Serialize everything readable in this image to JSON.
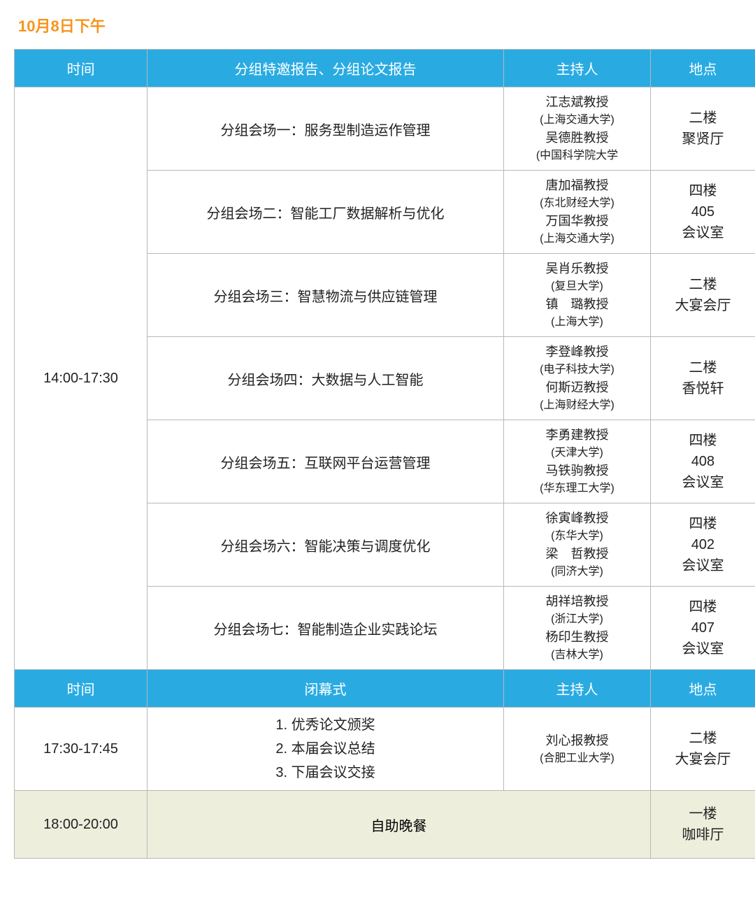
{
  "title": "10月8日下午",
  "header1": {
    "time": "时间",
    "topic": "分组特邀报告、分组论文报告",
    "host": "主持人",
    "loc": "地点"
  },
  "timeslot1": "14:00-17:30",
  "sessions": [
    {
      "topic": "分组会场一：服务型制造运作管理",
      "host1": "江志斌教授",
      "aff1": "(上海交通大学)",
      "host2": "吴德胜教授",
      "aff2": "(中国科学院大学",
      "loc1": "二楼",
      "loc2": "聚贤厅"
    },
    {
      "topic": "分组会场二：智能工厂数据解析与优化",
      "host1": "唐加福教授",
      "aff1": "(东北财经大学)",
      "host2": "万国华教授",
      "aff2": "(上海交通大学)",
      "loc1": "四楼",
      "loc2": "405",
      "loc3": "会议室"
    },
    {
      "topic": "分组会场三：智慧物流与供应链管理",
      "host1": "吴肖乐教授",
      "aff1": "(复旦大学)",
      "host2": "镇　璐教授",
      "aff2": "(上海大学)",
      "loc1": "二楼",
      "loc2": "大宴会厅"
    },
    {
      "topic": "分组会场四：大数据与人工智能",
      "host1": "李登峰教授",
      "aff1": "(电子科技大学)",
      "host2": "何斯迈教授",
      "aff2": "(上海财经大学)",
      "loc1": "二楼",
      "loc2": "香悦轩"
    },
    {
      "topic": "分组会场五：互联网平台运营管理",
      "host1": "李勇建教授",
      "aff1": "(天津大学)",
      "host2": "马铁驹教授",
      "aff2": "(华东理工大学)",
      "loc1": "四楼",
      "loc2": "408",
      "loc3": "会议室"
    },
    {
      "topic": "分组会场六：智能决策与调度优化",
      "host1": "徐寅峰教授",
      "aff1": "(东华大学)",
      "host2": "梁　哲教授",
      "aff2": "(同济大学)",
      "loc1": "四楼",
      "loc2": "402",
      "loc3": "会议室"
    },
    {
      "topic": "分组会场七：智能制造企业实践论坛",
      "host1": "胡祥培教授",
      "aff1": "(浙江大学)",
      "host2": "杨印生教授",
      "aff2": "(吉林大学)",
      "loc1": "四楼",
      "loc2": "407",
      "loc3": "会议室"
    }
  ],
  "header2": {
    "time": "时间",
    "topic": "闭幕式",
    "host": "主持人",
    "loc": "地点"
  },
  "closing": {
    "time": "17:30-17:45",
    "item1": "1. 优秀论文颁奖",
    "item2": "2. 本届会议总结",
    "item3": "3. 下届会议交接",
    "host": "刘心报教授",
    "aff": "(合肥工业大学)",
    "loc1": "二楼",
    "loc2": "大宴会厅"
  },
  "dinner": {
    "time": "18:00-20:00",
    "label": "自助晚餐",
    "loc1": "一楼",
    "loc2": "咖啡厅"
  },
  "colors": {
    "headerBg": "#29abe2",
    "titleColor": "#f7941e",
    "dinnerBg": "#eeeedd",
    "border": "#b8b8b8"
  }
}
